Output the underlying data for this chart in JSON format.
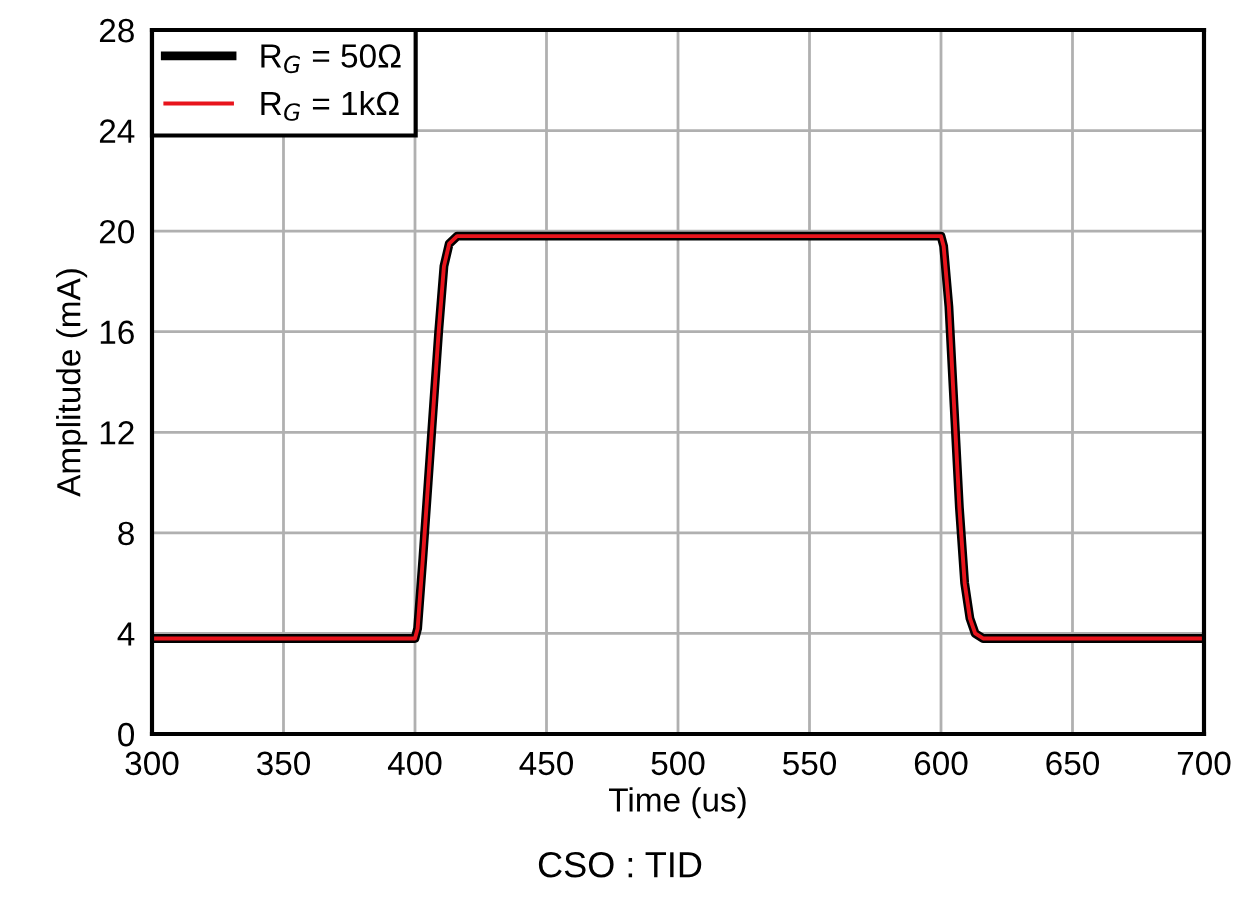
{
  "chart_data": {
    "type": "line",
    "xlabel": "Time (us)",
    "ylabel": "Amplitude (mA)",
    "annotations": [
      "CSO : TID"
    ],
    "xlim": [
      300,
      700
    ],
    "xticks": [
      300,
      350,
      400,
      450,
      500,
      550,
      600,
      650,
      700
    ],
    "ylim": [
      0,
      28
    ],
    "yticks": [
      0,
      4,
      8,
      12,
      16,
      20,
      24,
      28
    ],
    "grid": true,
    "legend": "top left",
    "line_style": "solid",
    "marker": "none",
    "series": [
      {
        "name": "R$_{G}$ = 50Ω",
        "color": "#000000",
        "x": [
          300,
          400,
          401,
          403,
          405,
          407,
          409,
          411,
          413,
          416,
          420,
          600,
          601,
          603,
          605,
          607,
          609,
          611,
          613,
          616,
          700
        ],
        "values": [
          3.8,
          3.8,
          4.2,
          7,
          10,
          13,
          16,
          18.6,
          19.5,
          19.8,
          19.8,
          19.8,
          19.4,
          17,
          13,
          9,
          6,
          4.6,
          4.0,
          3.8,
          3.8
        ]
      },
      {
        "name": "R$_{G}$ = 1kΩ",
        "color": "#e8141c",
        "x": [
          300,
          400,
          401,
          403,
          405,
          407,
          409,
          411,
          413,
          416,
          420,
          600,
          601,
          603,
          605,
          607,
          609,
          611,
          613,
          616,
          700
        ],
        "values": [
          3.8,
          3.8,
          4.2,
          7,
          10,
          13,
          16,
          18.6,
          19.5,
          19.8,
          19.8,
          19.8,
          19.4,
          17,
          13,
          9,
          6,
          4.6,
          4.0,
          3.8,
          3.8
        ]
      }
    ]
  }
}
